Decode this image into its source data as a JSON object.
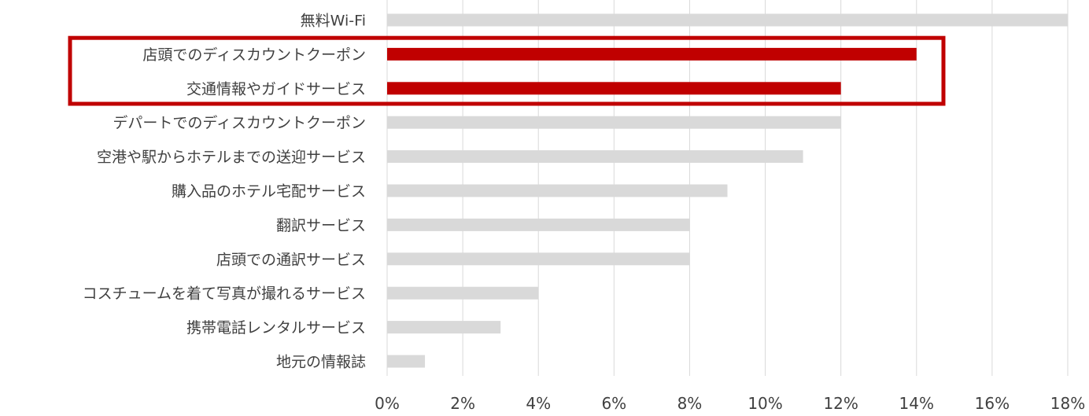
{
  "chart_data": {
    "type": "bar",
    "orientation": "horizontal",
    "title": "",
    "xlabel": "",
    "ylabel": "",
    "categories": [
      "無料Wi-Fi",
      "店頭でのディスカウントクーポン",
      "交通情報やガイドサービス",
      "デパートでのディスカウントクーポン",
      "空港や駅からホテルまでの送迎サービス",
      "購入品のホテル宅配サービス",
      "翻訳サービス",
      "店頭での通訳サービス",
      "コスチュームを着て写真が撮れるサービス",
      "携帯電話レンタルサービス",
      "地元の情報誌"
    ],
    "values": [
      18,
      14,
      12,
      12,
      11,
      9,
      8,
      8,
      4,
      3,
      1
    ],
    "highlighted": [
      false,
      true,
      true,
      false,
      false,
      false,
      false,
      false,
      false,
      false,
      false
    ],
    "xlim": [
      0,
      18
    ],
    "x_ticks": [
      "0%",
      "2%",
      "4%",
      "6%",
      "8%",
      "10%",
      "12%",
      "14%",
      "16%",
      "18%"
    ],
    "grid": "vertical",
    "legend": "none",
    "colors": {
      "bar": "#d9d9d9",
      "highlight_bar": "#c00000",
      "highlight_box": "#c00000",
      "grid": "#d9d9d9",
      "text": "#404040"
    }
  }
}
